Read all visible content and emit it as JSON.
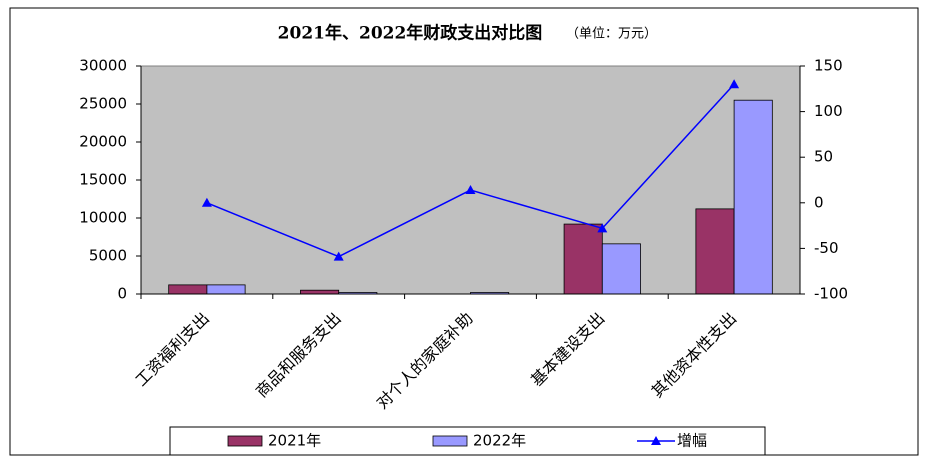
{
  "chart_data": {
    "type": "bar-line",
    "title": "2021年、2022年财政支出对比图",
    "subtitle": "（单位：万元）",
    "categories": [
      "工资福利支出",
      "商品和服务支出",
      "对个人的家庭补助",
      "基本建设支出",
      "其他资本性支出"
    ],
    "series": [
      {
        "name": "2021年",
        "type": "bar",
        "color": "#993366",
        "values": [
          1200,
          500,
          0,
          9200,
          11200
        ]
      },
      {
        "name": "2022年",
        "type": "bar",
        "color": "#9999ff",
        "values": [
          1200,
          200,
          200,
          6600,
          25500
        ]
      },
      {
        "name": "增幅",
        "type": "line",
        "axis": "y2",
        "color": "#0000ff",
        "values": [
          0,
          -59,
          14,
          -28,
          130
        ]
      }
    ],
    "ylim": [
      0,
      30000
    ],
    "yticks": [
      0,
      5000,
      10000,
      15000,
      20000,
      25000,
      30000
    ],
    "y2lim": [
      -100,
      150
    ],
    "y2ticks": [
      -100,
      -50,
      0,
      50,
      100,
      150
    ],
    "plot_background": "#c0c0c0"
  }
}
